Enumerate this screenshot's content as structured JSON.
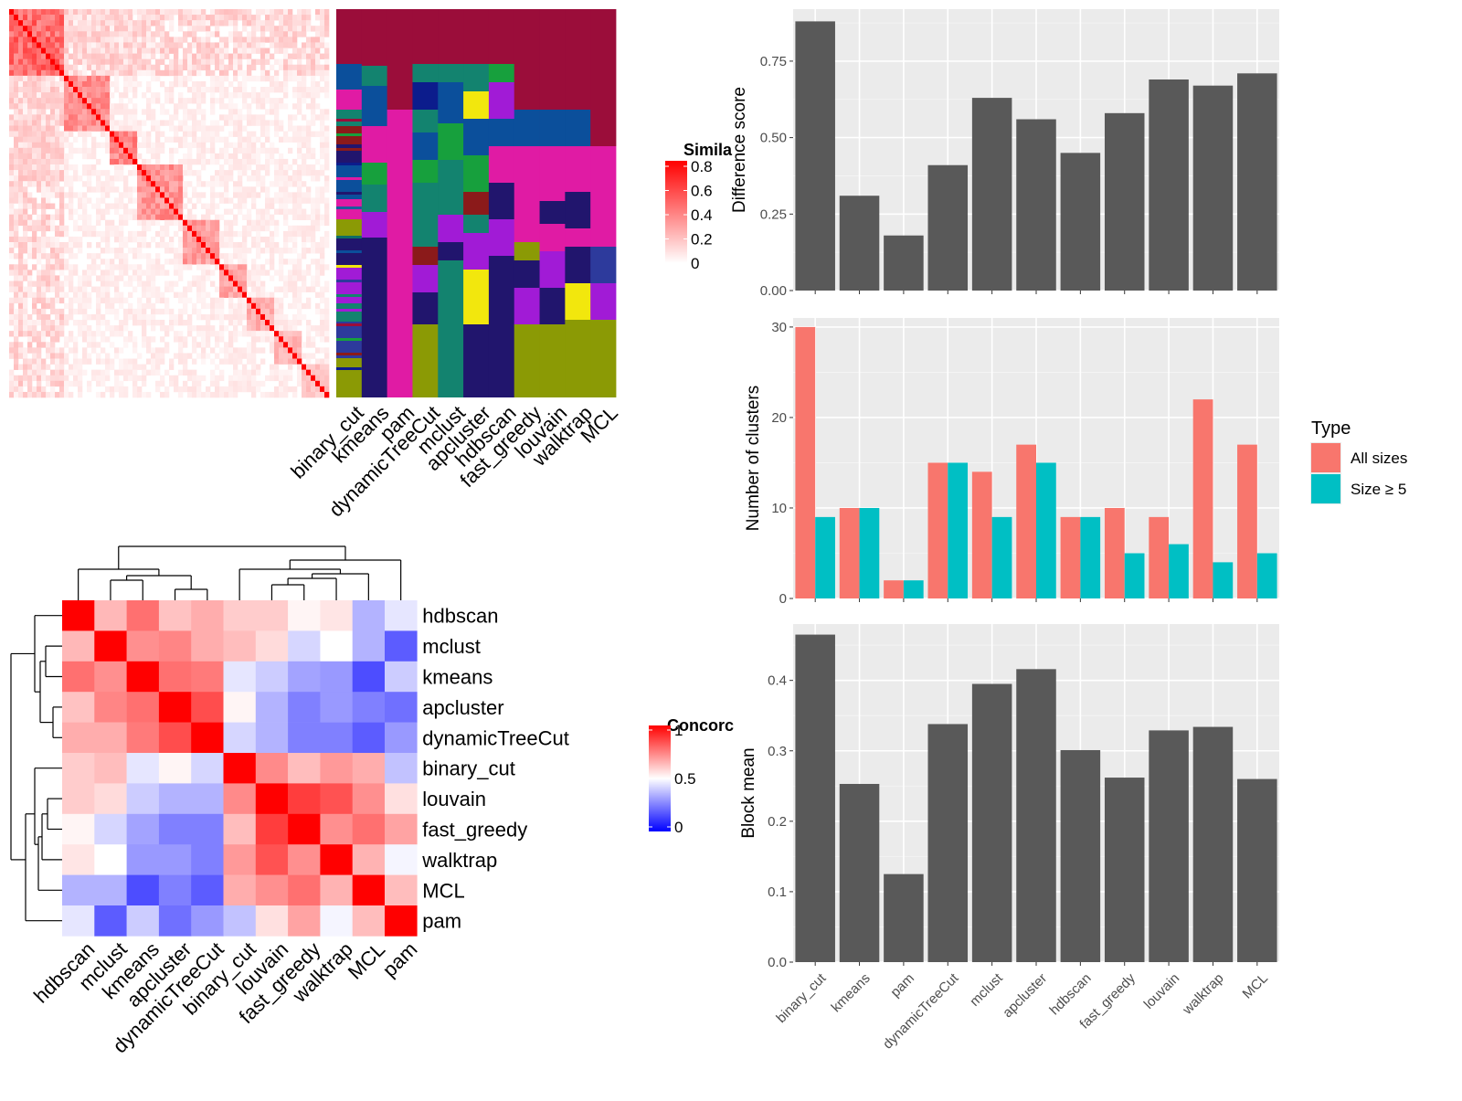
{
  "colors": {
    "panel_bg": "#ebebeb",
    "bar_fill": "#595959",
    "all_sizes": "#f8766d",
    "size_ge5": "#00bfc4",
    "sim_high": "#ff0000",
    "sim_low": "#ffffff",
    "conc_high": "#ff0000",
    "conc_mid": "#ffffff",
    "conc_low": "#0000ff",
    "class_palette": [
      "#9b0d3a",
      "#0c1c8c",
      "#1a5c9c",
      "#0b4f9b",
      "#13836f",
      "#17a03d",
      "#e01ba4",
      "#8b9a05",
      "#f2e70d",
      "#a11bd6",
      "#8b1a1a",
      "#21156d",
      "#0f6e64",
      "#2d3a9c"
    ]
  },
  "similarity_panel": {
    "legend_title": "Simila",
    "legend_ticks": [
      "0.8",
      "0.6",
      "0.4",
      "0.2",
      "0"
    ],
    "method_labels": [
      "binary_cut",
      "kmeans",
      "pam",
      "dynamicTreeCut",
      "mclust",
      "apcluster",
      "hdbscan",
      "fast_greedy",
      "louvain",
      "walktrap",
      "MCL"
    ]
  },
  "concordance_panel": {
    "legend_title": "Concorc",
    "legend_ticks": [
      "1",
      "0.5",
      "0"
    ],
    "row_labels": [
      "hdbscan",
      "mclust",
      "kmeans",
      "apcluster",
      "dynamicTreeCut",
      "binary_cut",
      "louvain",
      "fast_greedy",
      "walktrap",
      "MCL",
      "pam"
    ],
    "col_labels": [
      "hdbscan",
      "mclust",
      "kmeans",
      "apcluster",
      "dynamicTreeCut",
      "binary_cut",
      "louvain",
      "fast_greedy",
      "walktrap",
      "MCL",
      "pam"
    ],
    "matrix": [
      [
        1.0,
        0.64,
        0.78,
        0.62,
        0.66,
        0.6,
        0.6,
        0.52,
        0.55,
        0.35,
        0.45
      ],
      [
        0.64,
        1.0,
        0.72,
        0.74,
        0.66,
        0.63,
        0.57,
        0.42,
        0.5,
        0.35,
        0.18
      ],
      [
        0.78,
        0.72,
        1.0,
        0.78,
        0.76,
        0.45,
        0.4,
        0.32,
        0.3,
        0.15,
        0.4
      ],
      [
        0.62,
        0.74,
        0.78,
        1.0,
        0.85,
        0.52,
        0.35,
        0.25,
        0.3,
        0.25,
        0.22
      ],
      [
        0.66,
        0.66,
        0.76,
        0.85,
        1.0,
        0.42,
        0.35,
        0.25,
        0.25,
        0.18,
        0.3
      ],
      [
        0.6,
        0.63,
        0.45,
        0.52,
        0.42,
        1.0,
        0.73,
        0.63,
        0.7,
        0.66,
        0.38
      ],
      [
        0.6,
        0.57,
        0.4,
        0.35,
        0.35,
        0.73,
        1.0,
        0.88,
        0.84,
        0.72,
        0.56
      ],
      [
        0.52,
        0.42,
        0.32,
        0.25,
        0.25,
        0.63,
        0.88,
        1.0,
        0.72,
        0.78,
        0.68
      ],
      [
        0.55,
        0.5,
        0.3,
        0.3,
        0.25,
        0.7,
        0.84,
        0.72,
        1.0,
        0.65,
        0.48
      ],
      [
        0.35,
        0.35,
        0.15,
        0.25,
        0.18,
        0.66,
        0.72,
        0.78,
        0.65,
        1.0,
        0.63
      ],
      [
        0.45,
        0.18,
        0.4,
        0.22,
        0.3,
        0.38,
        0.56,
        0.68,
        0.48,
        0.63,
        1.0
      ]
    ]
  },
  "chart_data": [
    {
      "type": "bar",
      "categories": [
        "binary_cut",
        "kmeans",
        "pam",
        "dynamicTreeCut",
        "mclust",
        "apcluster",
        "hdbscan",
        "fast_greedy",
        "louvain",
        "walktrap",
        "MCL"
      ],
      "values": [
        0.88,
        0.31,
        0.18,
        0.41,
        0.63,
        0.56,
        0.45,
        0.58,
        0.69,
        0.67,
        0.71
      ],
      "title": "",
      "xlabel": "",
      "ylabel": "Difference score",
      "ylim": [
        0,
        0.92
      ],
      "yticks": [
        "0.00",
        "0.25",
        "0.50",
        "0.75"
      ],
      "grid": true
    },
    {
      "type": "bar",
      "categories": [
        "binary_cut",
        "kmeans",
        "pam",
        "dynamicTreeCut",
        "mclust",
        "apcluster",
        "hdbscan",
        "fast_greedy",
        "louvain",
        "walktrap",
        "MCL"
      ],
      "series": [
        {
          "name": "All sizes",
          "values": [
            30,
            10,
            2,
            15,
            14,
            17,
            9,
            10,
            9,
            22,
            17
          ]
        },
        {
          "name": "Size ≥ 5",
          "values": [
            9,
            10,
            2,
            15,
            9,
            15,
            9,
            5,
            6,
            4,
            5
          ]
        }
      ],
      "title": "",
      "xlabel": "",
      "ylabel": "Number of clusters",
      "ylim": [
        0,
        31
      ],
      "yticks": [
        "0",
        "10",
        "20",
        "30"
      ],
      "legend_title": "Type",
      "legend_position": "right",
      "grid": true
    },
    {
      "type": "bar",
      "categories": [
        "binary_cut",
        "kmeans",
        "pam",
        "dynamicTreeCut",
        "mclust",
        "apcluster",
        "hdbscan",
        "fast_greedy",
        "louvain",
        "walktrap",
        "MCL"
      ],
      "values": [
        0.465,
        0.253,
        0.125,
        0.338,
        0.395,
        0.416,
        0.301,
        0.262,
        0.329,
        0.334,
        0.26
      ],
      "title": "",
      "xlabel": "",
      "ylabel": "Block mean",
      "ylim": [
        0,
        0.48
      ],
      "yticks": [
        "0.0",
        "0.1",
        "0.2",
        "0.3",
        "0.4"
      ],
      "grid": true
    }
  ]
}
